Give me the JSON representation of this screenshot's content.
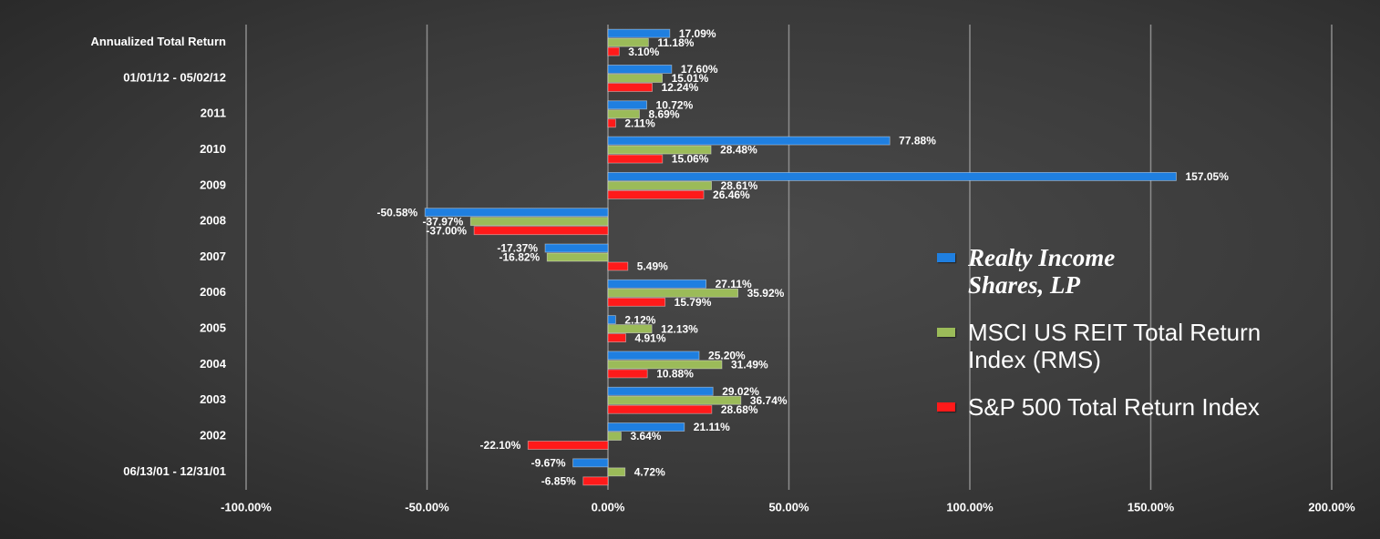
{
  "chart_data": {
    "type": "hbar",
    "categories": [
      "Annualized Total Return",
      "01/01/12 - 05/02/12",
      "2011",
      "2010",
      "2009",
      "2008",
      "2007",
      "2006",
      "2005",
      "2004",
      "2003",
      "2002",
      "06/13/01 - 12/31/01"
    ],
    "series": [
      {
        "name": "Realty Income Shares, LP",
        "color": "#1f7fe0",
        "values": [
          17.09,
          17.6,
          10.72,
          77.88,
          157.05,
          -50.58,
          -17.37,
          27.11,
          2.12,
          25.2,
          29.02,
          21.11,
          -9.67
        ],
        "value_labels": [
          "17.09%",
          "17.60%",
          "10.72%",
          "77.88%",
          "157.05%",
          "-50.58%",
          "-17.37%",
          "27.11%",
          "2.12%",
          "25.20%",
          "29.02%",
          "21.11%",
          "-9.67%"
        ]
      },
      {
        "name": "MSCI US REIT Total Return Index (RMS)",
        "color": "#9bbb59",
        "values": [
          11.18,
          15.01,
          8.69,
          28.48,
          28.61,
          -37.97,
          -16.82,
          35.92,
          12.13,
          31.49,
          36.74,
          3.64,
          4.72
        ],
        "value_labels": [
          "11.18%",
          "15.01%",
          "8.69%",
          "28.48%",
          "28.61%",
          "-37.97%",
          "-16.82%",
          "35.92%",
          "12.13%",
          "31.49%",
          "36.74%",
          "3.64%",
          "4.72%"
        ]
      },
      {
        "name": "S&P 500 Total Return Index",
        "color": "#ff1a1a",
        "values": [
          3.1,
          12.24,
          2.11,
          15.06,
          26.46,
          -37.0,
          5.49,
          15.79,
          4.91,
          10.88,
          28.68,
          -22.1,
          -6.85
        ],
        "value_labels": [
          "3.10%",
          "12.24%",
          "2.11%",
          "15.06%",
          "26.46%",
          "-37.00%",
          "5.49%",
          "15.79%",
          "4.91%",
          "10.88%",
          "28.68%",
          "-22.10%",
          "-6.85%"
        ]
      }
    ],
    "xlim": [
      -100,
      200
    ],
    "xticks": [
      {
        "value": -100,
        "label": "-100.00%"
      },
      {
        "value": -50,
        "label": "-50.00%"
      },
      {
        "value": 0,
        "label": "0.00%"
      },
      {
        "value": 50,
        "label": "50.00%"
      },
      {
        "value": 100,
        "label": "100.00%"
      },
      {
        "value": 150,
        "label": "150.00%"
      },
      {
        "value": 200,
        "label": "200.00%"
      }
    ],
    "grid": true,
    "legend": "right"
  }
}
